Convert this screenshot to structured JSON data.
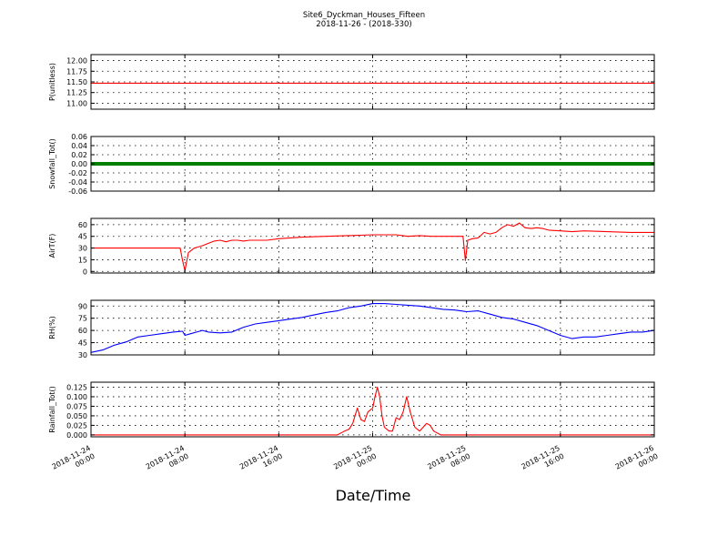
{
  "title_line1": "Site6_Dyckman_Houses_Fifteen",
  "title_line2": "2018-11-26 - (2018-330)",
  "x_label": "Date/Time",
  "chart_data": [
    {
      "type": "line",
      "ylabel": "P(unitless)",
      "color": "#ff0000",
      "ylim": [
        10.86,
        12.14
      ],
      "yticks": [
        "12.00",
        "11.75",
        "11.50",
        "11.25",
        "11.00"
      ],
      "ytick_values": [
        12.0,
        11.75,
        11.5,
        11.25,
        11.0
      ],
      "x": [
        0,
        48
      ],
      "values": [
        11.47,
        11.47
      ]
    },
    {
      "type": "scatter",
      "ylabel": "Snowfall_Tot()",
      "color": "#008000",
      "ylim": [
        -0.06,
        0.06
      ],
      "yticks": [
        "0.06",
        "0.04",
        "0.02",
        "0.00",
        "-0.02",
        "-0.04",
        "-0.06"
      ],
      "ytick_values": [
        0.06,
        0.04,
        0.02,
        0.0,
        -0.02,
        -0.04,
        -0.06
      ],
      "x": [
        0,
        48
      ],
      "values": [
        0,
        0
      ]
    },
    {
      "type": "line",
      "ylabel": "AirT(F)",
      "color": "#ff0000",
      "ylim": [
        -2,
        68
      ],
      "yticks": [
        "60",
        "45",
        "30",
        "15",
        "0"
      ],
      "ytick_values": [
        60,
        45,
        30,
        15,
        0
      ],
      "x": [
        0,
        2,
        4,
        6,
        7.6,
        7.8,
        8.0,
        8.3,
        8.8,
        9.5,
        10,
        10.5,
        11,
        11.5,
        12,
        12.5,
        13,
        13.5,
        14,
        15,
        16,
        18,
        20,
        22,
        24,
        26,
        27,
        28,
        29,
        30,
        31,
        31.7,
        31.9,
        32.1,
        32.5,
        33,
        33.5,
        34,
        34.5,
        35,
        35.5,
        36,
        36.5,
        37,
        37.5,
        38,
        38.5,
        39,
        40,
        41,
        42,
        44,
        46,
        48
      ],
      "values": [
        30,
        30,
        30,
        30,
        30,
        14,
        1,
        24,
        30,
        33,
        36,
        39,
        40,
        38,
        40,
        40,
        39,
        40,
        40,
        40,
        42,
        44,
        45,
        46,
        47,
        47,
        45,
        46,
        45,
        45,
        45,
        45,
        14,
        40,
        42,
        43,
        50,
        48,
        50,
        56,
        60,
        58,
        62,
        56,
        55,
        56,
        55,
        53,
        52,
        51,
        52,
        51,
        50,
        50
      ]
    },
    {
      "type": "line",
      "ylabel": "RH(%)",
      "color": "#0000ff",
      "ylim": [
        30,
        97
      ],
      "yticks": [
        "90",
        "75",
        "60",
        "45",
        "30"
      ],
      "ytick_values": [
        90,
        75,
        60,
        45,
        30
      ],
      "x": [
        0,
        1,
        2,
        3,
        4,
        5,
        6,
        7,
        7.8,
        8,
        8.5,
        9,
        9.5,
        10,
        11,
        12,
        13,
        14,
        15,
        16,
        17,
        18,
        19,
        20,
        21,
        22,
        23,
        24,
        25,
        26,
        27,
        28,
        29,
        30,
        31,
        31.5,
        32,
        33,
        34,
        35,
        36,
        37,
        38,
        39,
        40,
        41,
        42,
        43,
        44,
        45,
        46,
        47,
        48
      ],
      "values": [
        33,
        36,
        42,
        46,
        52,
        54,
        56,
        58,
        59,
        54,
        56,
        58,
        60,
        58,
        57,
        58,
        64,
        68,
        70,
        72,
        74,
        76,
        79,
        82,
        84,
        88,
        90,
        93,
        93,
        92,
        91,
        90,
        88,
        86,
        85,
        84,
        83,
        84,
        80,
        76,
        74,
        70,
        66,
        60,
        54,
        50,
        52,
        52,
        54,
        56,
        58,
        58,
        60
      ]
    },
    {
      "type": "line",
      "ylabel": "Rainfall_Tot()",
      "color": "#ff0000",
      "ylim": [
        -0.005,
        0.138
      ],
      "yticks": [
        "0.125",
        "0.100",
        "0.075",
        "0.050",
        "0.025",
        "0.000"
      ],
      "ytick_values": [
        0.125,
        0.1,
        0.075,
        0.05,
        0.025,
        0.0
      ],
      "x": [
        0,
        21,
        21.3,
        21.6,
        22,
        22.3,
        22.7,
        23,
        23.3,
        23.6,
        24,
        24.2,
        24.4,
        24.6,
        24.8,
        25,
        25.4,
        25.7,
        26,
        26.3,
        26.6,
        26.9,
        27.2,
        27.6,
        28,
        28.3,
        28.6,
        28.9,
        29.2,
        29.5,
        29.8,
        30.2,
        48
      ],
      "values": [
        0,
        0,
        0.005,
        0.01,
        0.015,
        0.03,
        0.07,
        0.04,
        0.035,
        0.06,
        0.07,
        0.1,
        0.125,
        0.1,
        0.05,
        0.02,
        0.01,
        0.01,
        0.045,
        0.04,
        0.06,
        0.1,
        0.06,
        0.02,
        0.01,
        0.02,
        0.03,
        0.025,
        0.01,
        0.005,
        0,
        0,
        0
      ]
    }
  ],
  "x_ticks": [
    {
      "value": 0,
      "line1": "2018-11-24",
      "line2": "00:00"
    },
    {
      "value": 8,
      "line1": "2018-11-24",
      "line2": "08:00"
    },
    {
      "value": 16,
      "line1": "2018-11-24",
      "line2": "16:00"
    },
    {
      "value": 24,
      "line1": "2018-11-25",
      "line2": "00:00"
    },
    {
      "value": 32,
      "line1": "2018-11-25",
      "line2": "08:00"
    },
    {
      "value": 40,
      "line1": "2018-11-25",
      "line2": "16:00"
    },
    {
      "value": 48,
      "line1": "2018-11-26",
      "line2": "00:00"
    }
  ],
  "x_range": [
    0,
    48
  ]
}
